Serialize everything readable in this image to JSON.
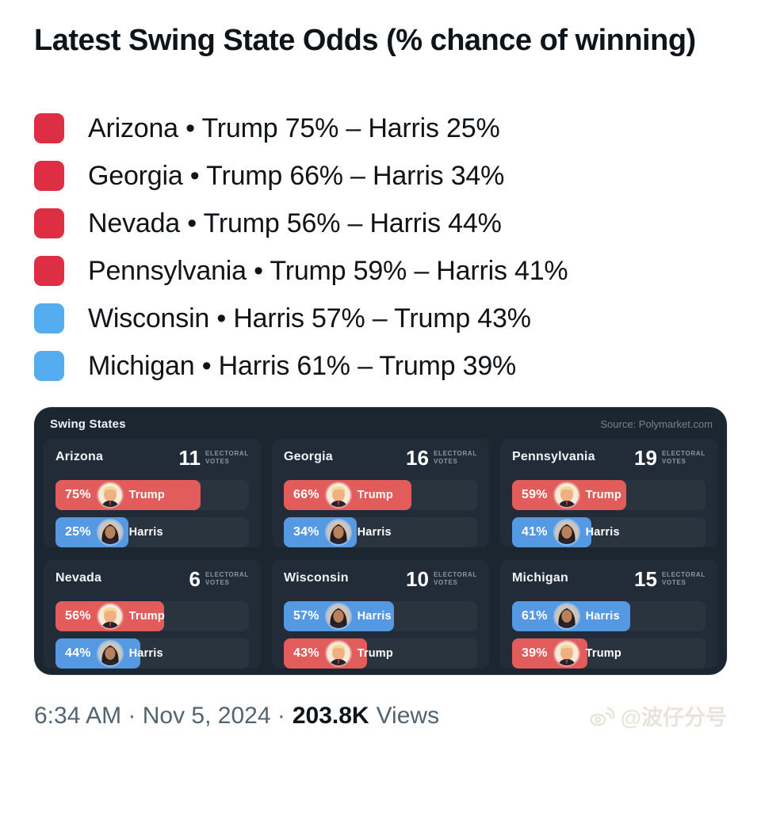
{
  "tweet": {
    "title": "Latest Swing State Odds (% chance of winning)"
  },
  "colors": {
    "legend_red": "#dd2e44",
    "legend_blue": "#55acee",
    "bar_red": "#e25c5c",
    "bar_blue": "#5499e1",
    "panel_bg": "#1c2630",
    "card_bg": "#212c38"
  },
  "legend": {
    "items": [
      {
        "square_color": "#dd2e44",
        "text": "Arizona • Trump 75% – Harris 25%"
      },
      {
        "square_color": "#dd2e44",
        "text": "Georgia • Trump 66% – Harris 34%"
      },
      {
        "square_color": "#dd2e44",
        "text": "Nevada • Trump 56% – Harris 44%"
      },
      {
        "square_color": "#dd2e44",
        "text": "Pennsylvania • Trump 59% – Harris 41%"
      },
      {
        "square_color": "#55acee",
        "text": "Wisconsin • Harris 57% – Trump 43%"
      },
      {
        "square_color": "#55acee",
        "text": "Michigan • Harris 61% – Trump 39%"
      }
    ]
  },
  "panel": {
    "title": "Swing States",
    "source": "Source: Polymarket.com",
    "ev_label_top": "ELECTORAL",
    "ev_label_bottom": "VOTES",
    "cards": [
      {
        "state": "Arizona",
        "ev": "11",
        "bars": [
          {
            "pct": "75%",
            "width": 75,
            "candidate": "Trump",
            "color": "#e25c5c"
          },
          {
            "pct": "25%",
            "width": 25,
            "candidate": "Harris",
            "color": "#5499e1"
          }
        ]
      },
      {
        "state": "Georgia",
        "ev": "16",
        "bars": [
          {
            "pct": "66%",
            "width": 66,
            "candidate": "Trump",
            "color": "#e25c5c"
          },
          {
            "pct": "34%",
            "width": 34,
            "candidate": "Harris",
            "color": "#5499e1"
          }
        ]
      },
      {
        "state": "Pennsylvania",
        "ev": "19",
        "bars": [
          {
            "pct": "59%",
            "width": 59,
            "candidate": "Trump",
            "color": "#e25c5c"
          },
          {
            "pct": "41%",
            "width": 41,
            "candidate": "Harris",
            "color": "#5499e1"
          }
        ]
      },
      {
        "state": "Nevada",
        "ev": "6",
        "bars": [
          {
            "pct": "56%",
            "width": 56,
            "candidate": "Trump",
            "color": "#e25c5c"
          },
          {
            "pct": "44%",
            "width": 44,
            "candidate": "Harris",
            "color": "#5499e1"
          }
        ]
      },
      {
        "state": "Wisconsin",
        "ev": "10",
        "bars": [
          {
            "pct": "57%",
            "width": 57,
            "candidate": "Harris",
            "color": "#5499e1"
          },
          {
            "pct": "43%",
            "width": 43,
            "candidate": "Trump",
            "color": "#e25c5c"
          }
        ]
      },
      {
        "state": "Michigan",
        "ev": "15",
        "bars": [
          {
            "pct": "61%",
            "width": 61,
            "candidate": "Harris",
            "color": "#5499e1"
          },
          {
            "pct": "39%",
            "width": 39,
            "candidate": "Trump",
            "color": "#e25c5c"
          }
        ]
      }
    ]
  },
  "chart_data": {
    "type": "bar",
    "title": "Swing States",
    "source": "Source: Polymarket.com",
    "unit": "% chance of winning",
    "categories": [
      "Arizona",
      "Georgia",
      "Pennsylvania",
      "Nevada",
      "Wisconsin",
      "Michigan"
    ],
    "electoral_votes": [
      11,
      16,
      19,
      6,
      10,
      15
    ],
    "series": [
      {
        "name": "Trump",
        "values": [
          75,
          66,
          59,
          56,
          43,
          39
        ]
      },
      {
        "name": "Harris",
        "values": [
          25,
          34,
          41,
          44,
          57,
          61
        ]
      }
    ],
    "xlim": [
      0,
      100
    ]
  },
  "footer": {
    "prefix": "6:34 AM · Nov 5, 2024 ·",
    "views_count": "203.8K",
    "views_label": "Views"
  },
  "watermark": {
    "handle": "@波仔分号"
  }
}
